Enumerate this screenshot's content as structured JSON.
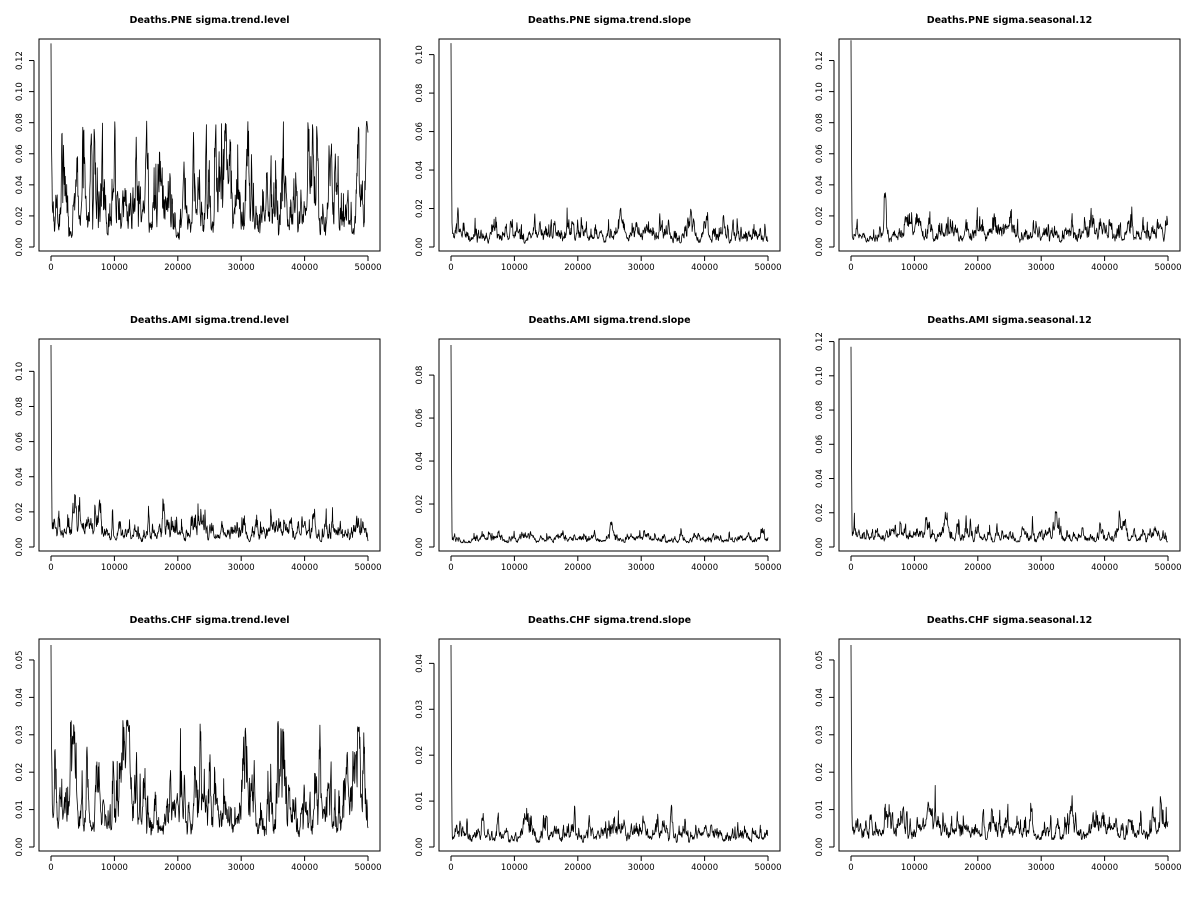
{
  "chart_data": [
    {
      "type": "line",
      "title": "Deaths.PNE sigma.trend.level",
      "xlim": [
        0,
        50000
      ],
      "ylim": [
        0,
        0.13
      ],
      "x_ticks": [
        0,
        10000,
        20000,
        30000,
        40000,
        50000
      ],
      "x_tick_labels": [
        "0",
        "10000",
        "20000",
        "30000",
        "40000",
        "50000"
      ],
      "y_ticks": [
        0,
        0.02,
        0.04,
        0.06,
        0.08,
        0.1,
        0.12
      ],
      "y_tick_labels": [
        "0.00",
        "0.02",
        "0.04",
        "0.06",
        "0.08",
        "0.10",
        "0.12"
      ],
      "series": [
        {
          "n_iter": 50000,
          "initial_spike": 0.131,
          "approx_mean": 0.025,
          "approx_min": 0.004,
          "approx_max": 0.081
        }
      ]
    },
    {
      "type": "line",
      "title": "Deaths.PNE sigma.trend.slope",
      "xlim": [
        0,
        50000
      ],
      "ylim": [
        0,
        0.105
      ],
      "x_ticks": [
        0,
        10000,
        20000,
        30000,
        40000,
        50000
      ],
      "x_tick_labels": [
        "0",
        "10000",
        "20000",
        "30000",
        "40000",
        "50000"
      ],
      "y_ticks": [
        0,
        0.02,
        0.04,
        0.06,
        0.08,
        0.1
      ],
      "y_tick_labels": [
        "0.00",
        "0.02",
        "0.04",
        "0.06",
        "0.08",
        "0.10"
      ],
      "series": [
        {
          "n_iter": 50000,
          "initial_spike": 0.106,
          "approx_mean": 0.007,
          "approx_min": 0.002,
          "approx_max": 0.024
        }
      ]
    },
    {
      "type": "line",
      "title": "Deaths.PNE sigma.seasonal.12",
      "xlim": [
        0,
        50000
      ],
      "ylim": [
        0,
        0.13
      ],
      "x_ticks": [
        0,
        10000,
        20000,
        30000,
        40000,
        50000
      ],
      "x_tick_labels": [
        "0",
        "10000",
        "20000",
        "30000",
        "40000",
        "50000"
      ],
      "y_ticks": [
        0,
        0.02,
        0.04,
        0.06,
        0.08,
        0.1,
        0.12
      ],
      "y_tick_labels": [
        "0.00",
        "0.02",
        "0.04",
        "0.06",
        "0.08",
        "0.10",
        "0.12"
      ],
      "series": [
        {
          "n_iter": 50000,
          "initial_spike": 0.133,
          "approx_mean": 0.009,
          "approx_min": 0.003,
          "approx_max": 0.035
        }
      ]
    },
    {
      "type": "line",
      "title": "Deaths.AMI sigma.trend.level",
      "xlim": [
        0,
        50000
      ],
      "ylim": [
        0,
        0.115
      ],
      "x_ticks": [
        0,
        10000,
        20000,
        30000,
        40000,
        50000
      ],
      "x_tick_labels": [
        "0",
        "10000",
        "20000",
        "30000",
        "40000",
        "50000"
      ],
      "y_ticks": [
        0,
        0.02,
        0.04,
        0.06,
        0.08,
        0.1
      ],
      "y_tick_labels": [
        "0.00",
        "0.02",
        "0.04",
        "0.06",
        "0.08",
        "0.10"
      ],
      "series": [
        {
          "n_iter": 50000,
          "initial_spike": 0.115,
          "approx_mean": 0.009,
          "approx_min": 0.003,
          "approx_max": 0.03
        }
      ]
    },
    {
      "type": "line",
      "title": "Deaths.AMI sigma.trend.slope",
      "xlim": [
        0,
        50000
      ],
      "ylim": [
        0,
        0.094
      ],
      "x_ticks": [
        0,
        10000,
        20000,
        30000,
        40000,
        50000
      ],
      "x_tick_labels": [
        "0",
        "10000",
        "20000",
        "30000",
        "40000",
        "50000"
      ],
      "y_ticks": [
        0,
        0.02,
        0.04,
        0.06,
        0.08
      ],
      "y_tick_labels": [
        "0.00",
        "0.02",
        "0.04",
        "0.06",
        "0.08"
      ],
      "series": [
        {
          "n_iter": 50000,
          "initial_spike": 0.094,
          "approx_mean": 0.004,
          "approx_min": 0.002,
          "approx_max": 0.012
        }
      ]
    },
    {
      "type": "line",
      "title": "Deaths.AMI sigma.seasonal.12",
      "xlim": [
        0,
        50000
      ],
      "ylim": [
        0,
        0.118
      ],
      "x_ticks": [
        0,
        10000,
        20000,
        30000,
        40000,
        50000
      ],
      "x_tick_labels": [
        "0",
        "10000",
        "20000",
        "30000",
        "40000",
        "50000"
      ],
      "y_ticks": [
        0,
        0.02,
        0.04,
        0.06,
        0.08,
        0.1,
        0.12
      ],
      "y_tick_labels": [
        "0.00",
        "0.02",
        "0.04",
        "0.06",
        "0.08",
        "0.10",
        "0.12"
      ],
      "series": [
        {
          "n_iter": 50000,
          "initial_spike": 0.117,
          "approx_mean": 0.007,
          "approx_min": 0.003,
          "approx_max": 0.022
        }
      ]
    },
    {
      "type": "line",
      "title": "Deaths.CHF sigma.trend.level",
      "xlim": [
        0,
        50000
      ],
      "ylim": [
        0,
        0.054
      ],
      "x_ticks": [
        0,
        10000,
        20000,
        30000,
        40000,
        50000
      ],
      "x_tick_labels": [
        "0",
        "10000",
        "20000",
        "30000",
        "40000",
        "50000"
      ],
      "y_ticks": [
        0,
        0.01,
        0.02,
        0.03,
        0.04,
        0.05
      ],
      "y_tick_labels": [
        "0.00",
        "0.01",
        "0.02",
        "0.03",
        "0.04",
        "0.05"
      ],
      "series": [
        {
          "n_iter": 50000,
          "initial_spike": 0.054,
          "approx_mean": 0.011,
          "approx_min": 0.002,
          "approx_max": 0.034
        }
      ]
    },
    {
      "type": "line",
      "title": "Deaths.CHF sigma.trend.slope",
      "xlim": [
        0,
        50000
      ],
      "ylim": [
        0,
        0.044
      ],
      "x_ticks": [
        0,
        10000,
        20000,
        30000,
        40000,
        50000
      ],
      "x_tick_labels": [
        "0",
        "10000",
        "20000",
        "30000",
        "40000",
        "50000"
      ],
      "y_ticks": [
        0,
        0.01,
        0.02,
        0.03,
        0.04
      ],
      "y_tick_labels": [
        "0.00",
        "0.01",
        "0.02",
        "0.03",
        "0.04"
      ],
      "series": [
        {
          "n_iter": 50000,
          "initial_spike": 0.044,
          "approx_mean": 0.003,
          "approx_min": 0.001,
          "approx_max": 0.01
        }
      ]
    },
    {
      "type": "line",
      "title": "Deaths.CHF sigma.seasonal.12",
      "xlim": [
        0,
        50000
      ],
      "ylim": [
        0,
        0.054
      ],
      "x_ticks": [
        0,
        10000,
        20000,
        30000,
        40000,
        50000
      ],
      "x_tick_labels": [
        "0",
        "10000",
        "20000",
        "30000",
        "40000",
        "50000"
      ],
      "y_ticks": [
        0,
        0.01,
        0.02,
        0.03,
        0.04,
        0.05
      ],
      "y_tick_labels": [
        "0.00",
        "0.01",
        "0.02",
        "0.03",
        "0.04",
        "0.05"
      ],
      "series": [
        {
          "n_iter": 50000,
          "initial_spike": 0.054,
          "approx_mean": 0.005,
          "approx_min": 0.002,
          "approx_max": 0.017
        }
      ]
    }
  ]
}
